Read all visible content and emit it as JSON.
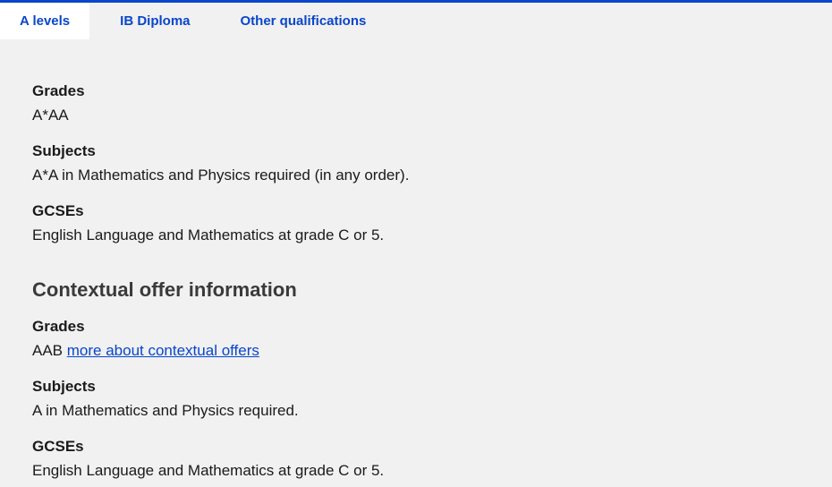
{
  "colors": {
    "accent": "#0946ca",
    "panel_bg": "#f1f1f1",
    "text": "#1a1a1a",
    "subheader_text": "#3a3a3a",
    "white": "#ffffff"
  },
  "tabs": {
    "a_levels": "A levels",
    "ib_diploma": "IB Diploma",
    "other_qualifications": "Other qualifications"
  },
  "main": {
    "grades_label": "Grades",
    "grades_value": "A*AA",
    "subjects_label": "Subjects",
    "subjects_value": "A*A in Mathematics and Physics required (in any order).",
    "gcses_label": "GCSEs",
    "gcses_value": "English Language and Mathematics at grade C or 5."
  },
  "contextual": {
    "header": "Contextual offer information",
    "grades_label": "Grades",
    "grades_value": "AAB ",
    "grades_link": "more about contextual offers",
    "subjects_label": "Subjects",
    "subjects_value": "A in Mathematics and Physics required.",
    "gcses_label": "GCSEs",
    "gcses_value": "English Language and Mathematics at grade C or 5."
  }
}
